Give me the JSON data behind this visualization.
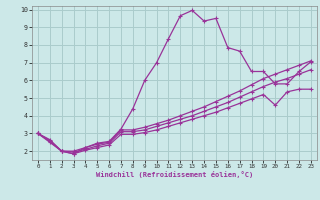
{
  "xlabel": "Windchill (Refroidissement éolien,°C)",
  "bg_color": "#cce8e8",
  "line_color": "#993399",
  "grid_color": "#aacccc",
  "xlim": [
    -0.5,
    23.5
  ],
  "ylim": [
    1.5,
    10.2
  ],
  "yticks": [
    2,
    3,
    4,
    5,
    6,
    7,
    8,
    9,
    10
  ],
  "xticks": [
    0,
    1,
    2,
    3,
    4,
    5,
    6,
    7,
    8,
    9,
    10,
    11,
    12,
    13,
    14,
    15,
    16,
    17,
    18,
    19,
    20,
    21,
    22,
    23
  ],
  "lines": [
    {
      "x": [
        0,
        1,
        2,
        3,
        4,
        5,
        6,
        7,
        8,
        9,
        10,
        11,
        12,
        13,
        14,
        15,
        16,
        17,
        18,
        19,
        20,
        21,
        22,
        23
      ],
      "y": [
        3.0,
        2.65,
        2.0,
        1.85,
        2.2,
        2.45,
        2.55,
        3.25,
        4.4,
        6.0,
        7.0,
        8.35,
        9.65,
        9.95,
        9.35,
        9.5,
        7.85,
        7.65,
        6.5,
        6.5,
        5.8,
        5.8,
        6.5,
        7.05
      ]
    },
    {
      "x": [
        0,
        1,
        2,
        3,
        4,
        5,
        6,
        7,
        8,
        9,
        10,
        11,
        12,
        13,
        14,
        15,
        16,
        17,
        18,
        19,
        20,
        21,
        22,
        23
      ],
      "y": [
        3.0,
        2.6,
        2.0,
        2.0,
        2.2,
        2.4,
        2.5,
        3.2,
        3.2,
        3.35,
        3.55,
        3.75,
        4.0,
        4.25,
        4.5,
        4.8,
        5.1,
        5.4,
        5.75,
        6.1,
        6.35,
        6.6,
        6.85,
        7.1
      ]
    },
    {
      "x": [
        0,
        1,
        2,
        3,
        4,
        5,
        6,
        7,
        8,
        9,
        10,
        11,
        12,
        13,
        14,
        15,
        16,
        17,
        18,
        19,
        20,
        21,
        22,
        23
      ],
      "y": [
        3.0,
        2.55,
        2.0,
        1.95,
        2.1,
        2.3,
        2.45,
        3.1,
        3.1,
        3.2,
        3.4,
        3.6,
        3.8,
        4.0,
        4.25,
        4.5,
        4.75,
        5.05,
        5.35,
        5.65,
        5.9,
        6.1,
        6.35,
        6.6
      ]
    },
    {
      "x": [
        0,
        1,
        2,
        3,
        4,
        5,
        6,
        7,
        8,
        9,
        10,
        11,
        12,
        13,
        14,
        15,
        16,
        17,
        18,
        19,
        20,
        21,
        22,
        23
      ],
      "y": [
        3.0,
        2.5,
        2.0,
        1.85,
        2.05,
        2.2,
        2.35,
        2.95,
        2.95,
        3.05,
        3.2,
        3.4,
        3.6,
        3.8,
        4.0,
        4.2,
        4.45,
        4.7,
        4.95,
        5.2,
        4.6,
        5.35,
        5.5,
        5.5
      ]
    }
  ]
}
